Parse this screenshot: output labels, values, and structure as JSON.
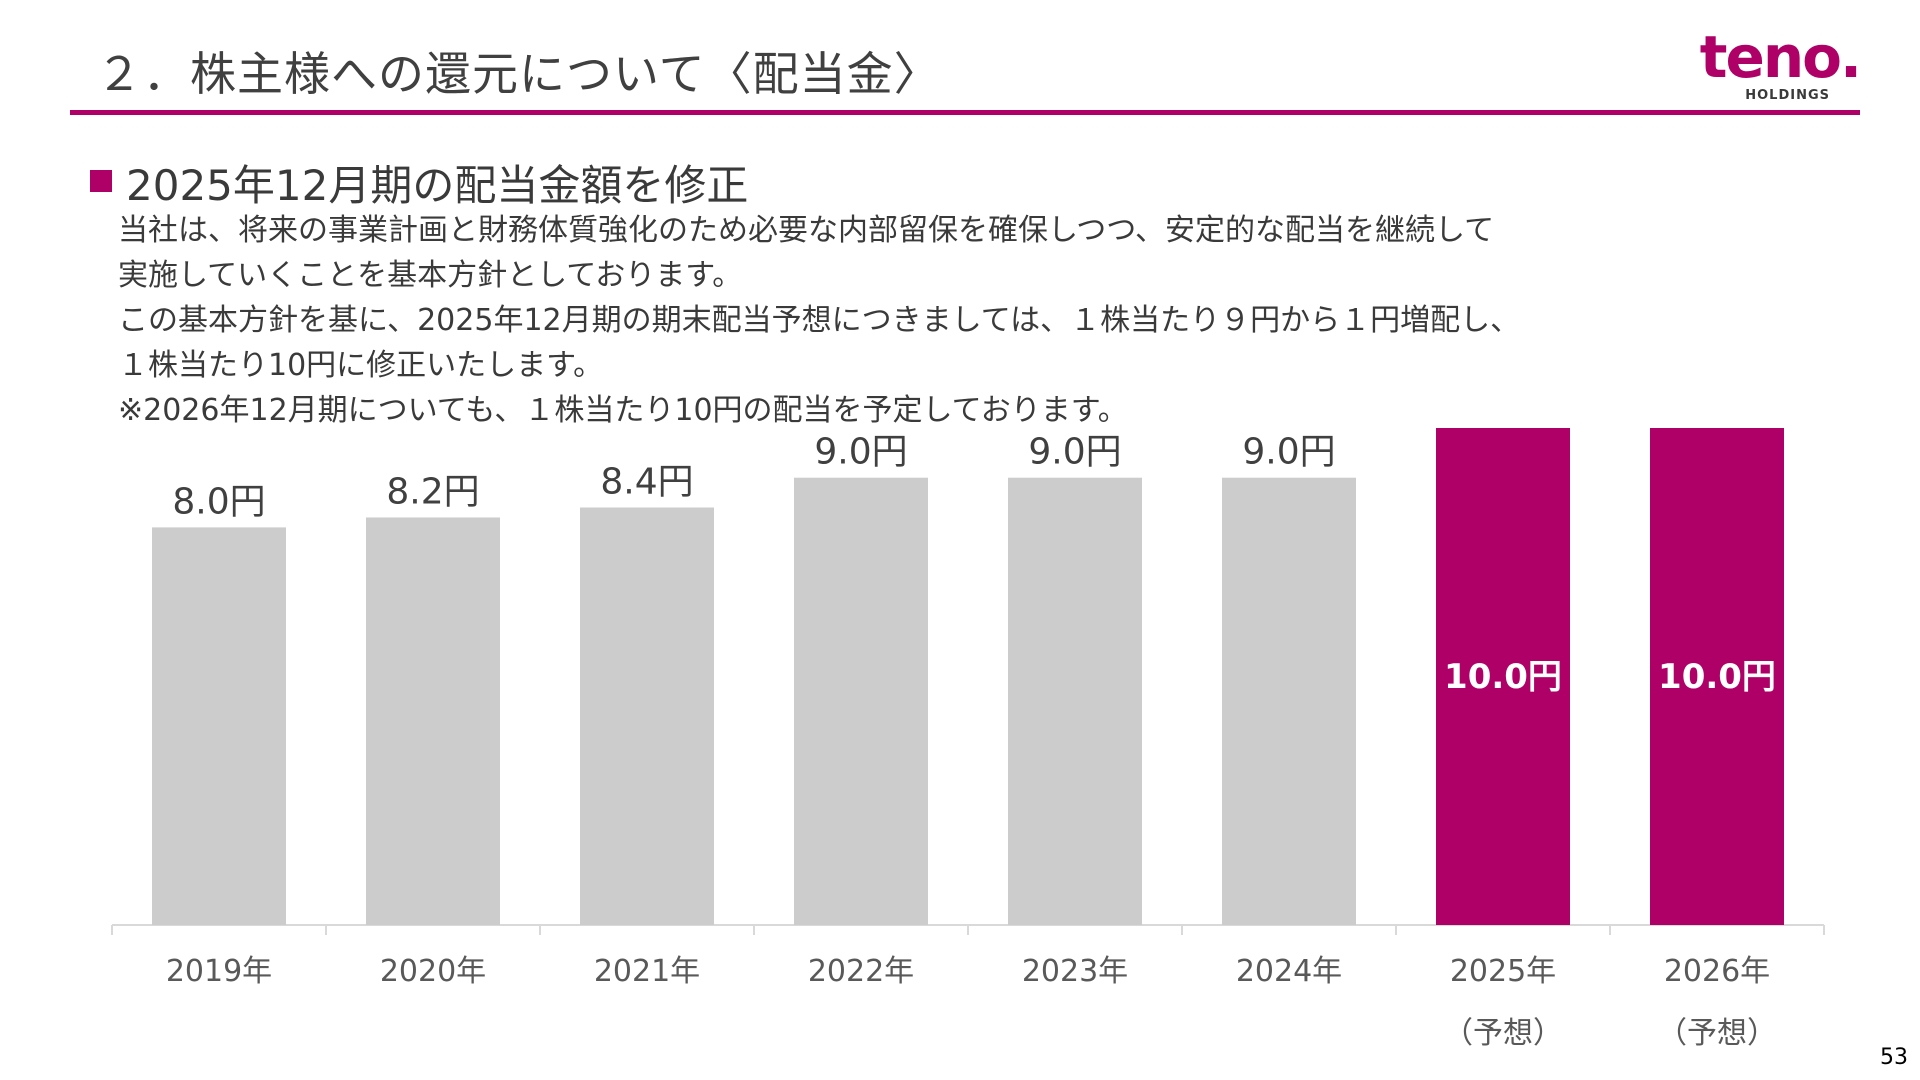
{
  "header": {
    "title": "２．株主様への還元について〈配当金〉",
    "logo_word": "teno.",
    "logo_sub": "HOLDINGS"
  },
  "section": {
    "heading": "2025年12月期の配当金額を修正",
    "lines": [
      "当社は、将来の事業計画と財務体質強化のため必要な内部留保を確保しつつ、安定的な配当を継続して",
      "実施していくことを基本方針としております。",
      "この基本方針を基に、2025年12月期の期末配当予想につきましては、１株当たり９円から１円増配し、",
      "１株当たり10円に修正いたします。",
      "※2026年12月期についても、１株当たり10円の配当を予定しております。"
    ]
  },
  "chart_data": {
    "type": "bar",
    "categories": [
      "2019年",
      "2020年",
      "2021年",
      "2022年",
      "2023年",
      "2024年",
      "2025年",
      "2026年"
    ],
    "category_notes": [
      "",
      "",
      "",
      "",
      "",
      "",
      "（予想）",
      "（予想）"
    ],
    "values": [
      8.0,
      8.2,
      8.4,
      9.0,
      9.0,
      9.0,
      10.0,
      10.0
    ],
    "value_labels": [
      "8.0円",
      "8.2円",
      "8.4円",
      "9.0円",
      "9.0円",
      "9.0円",
      "10.0円",
      "10.0円"
    ],
    "forecast": [
      false,
      false,
      false,
      false,
      false,
      false,
      true,
      true
    ],
    "colors": {
      "actual": "#cccccc",
      "forecast": "#ae0067",
      "axis": "#d9d9d9",
      "label": "#404040",
      "forecast_label": "#ffffff"
    },
    "title": "",
    "xlabel": "",
    "ylabel": "",
    "grid": false
  },
  "footer": {
    "page_number": "53"
  }
}
